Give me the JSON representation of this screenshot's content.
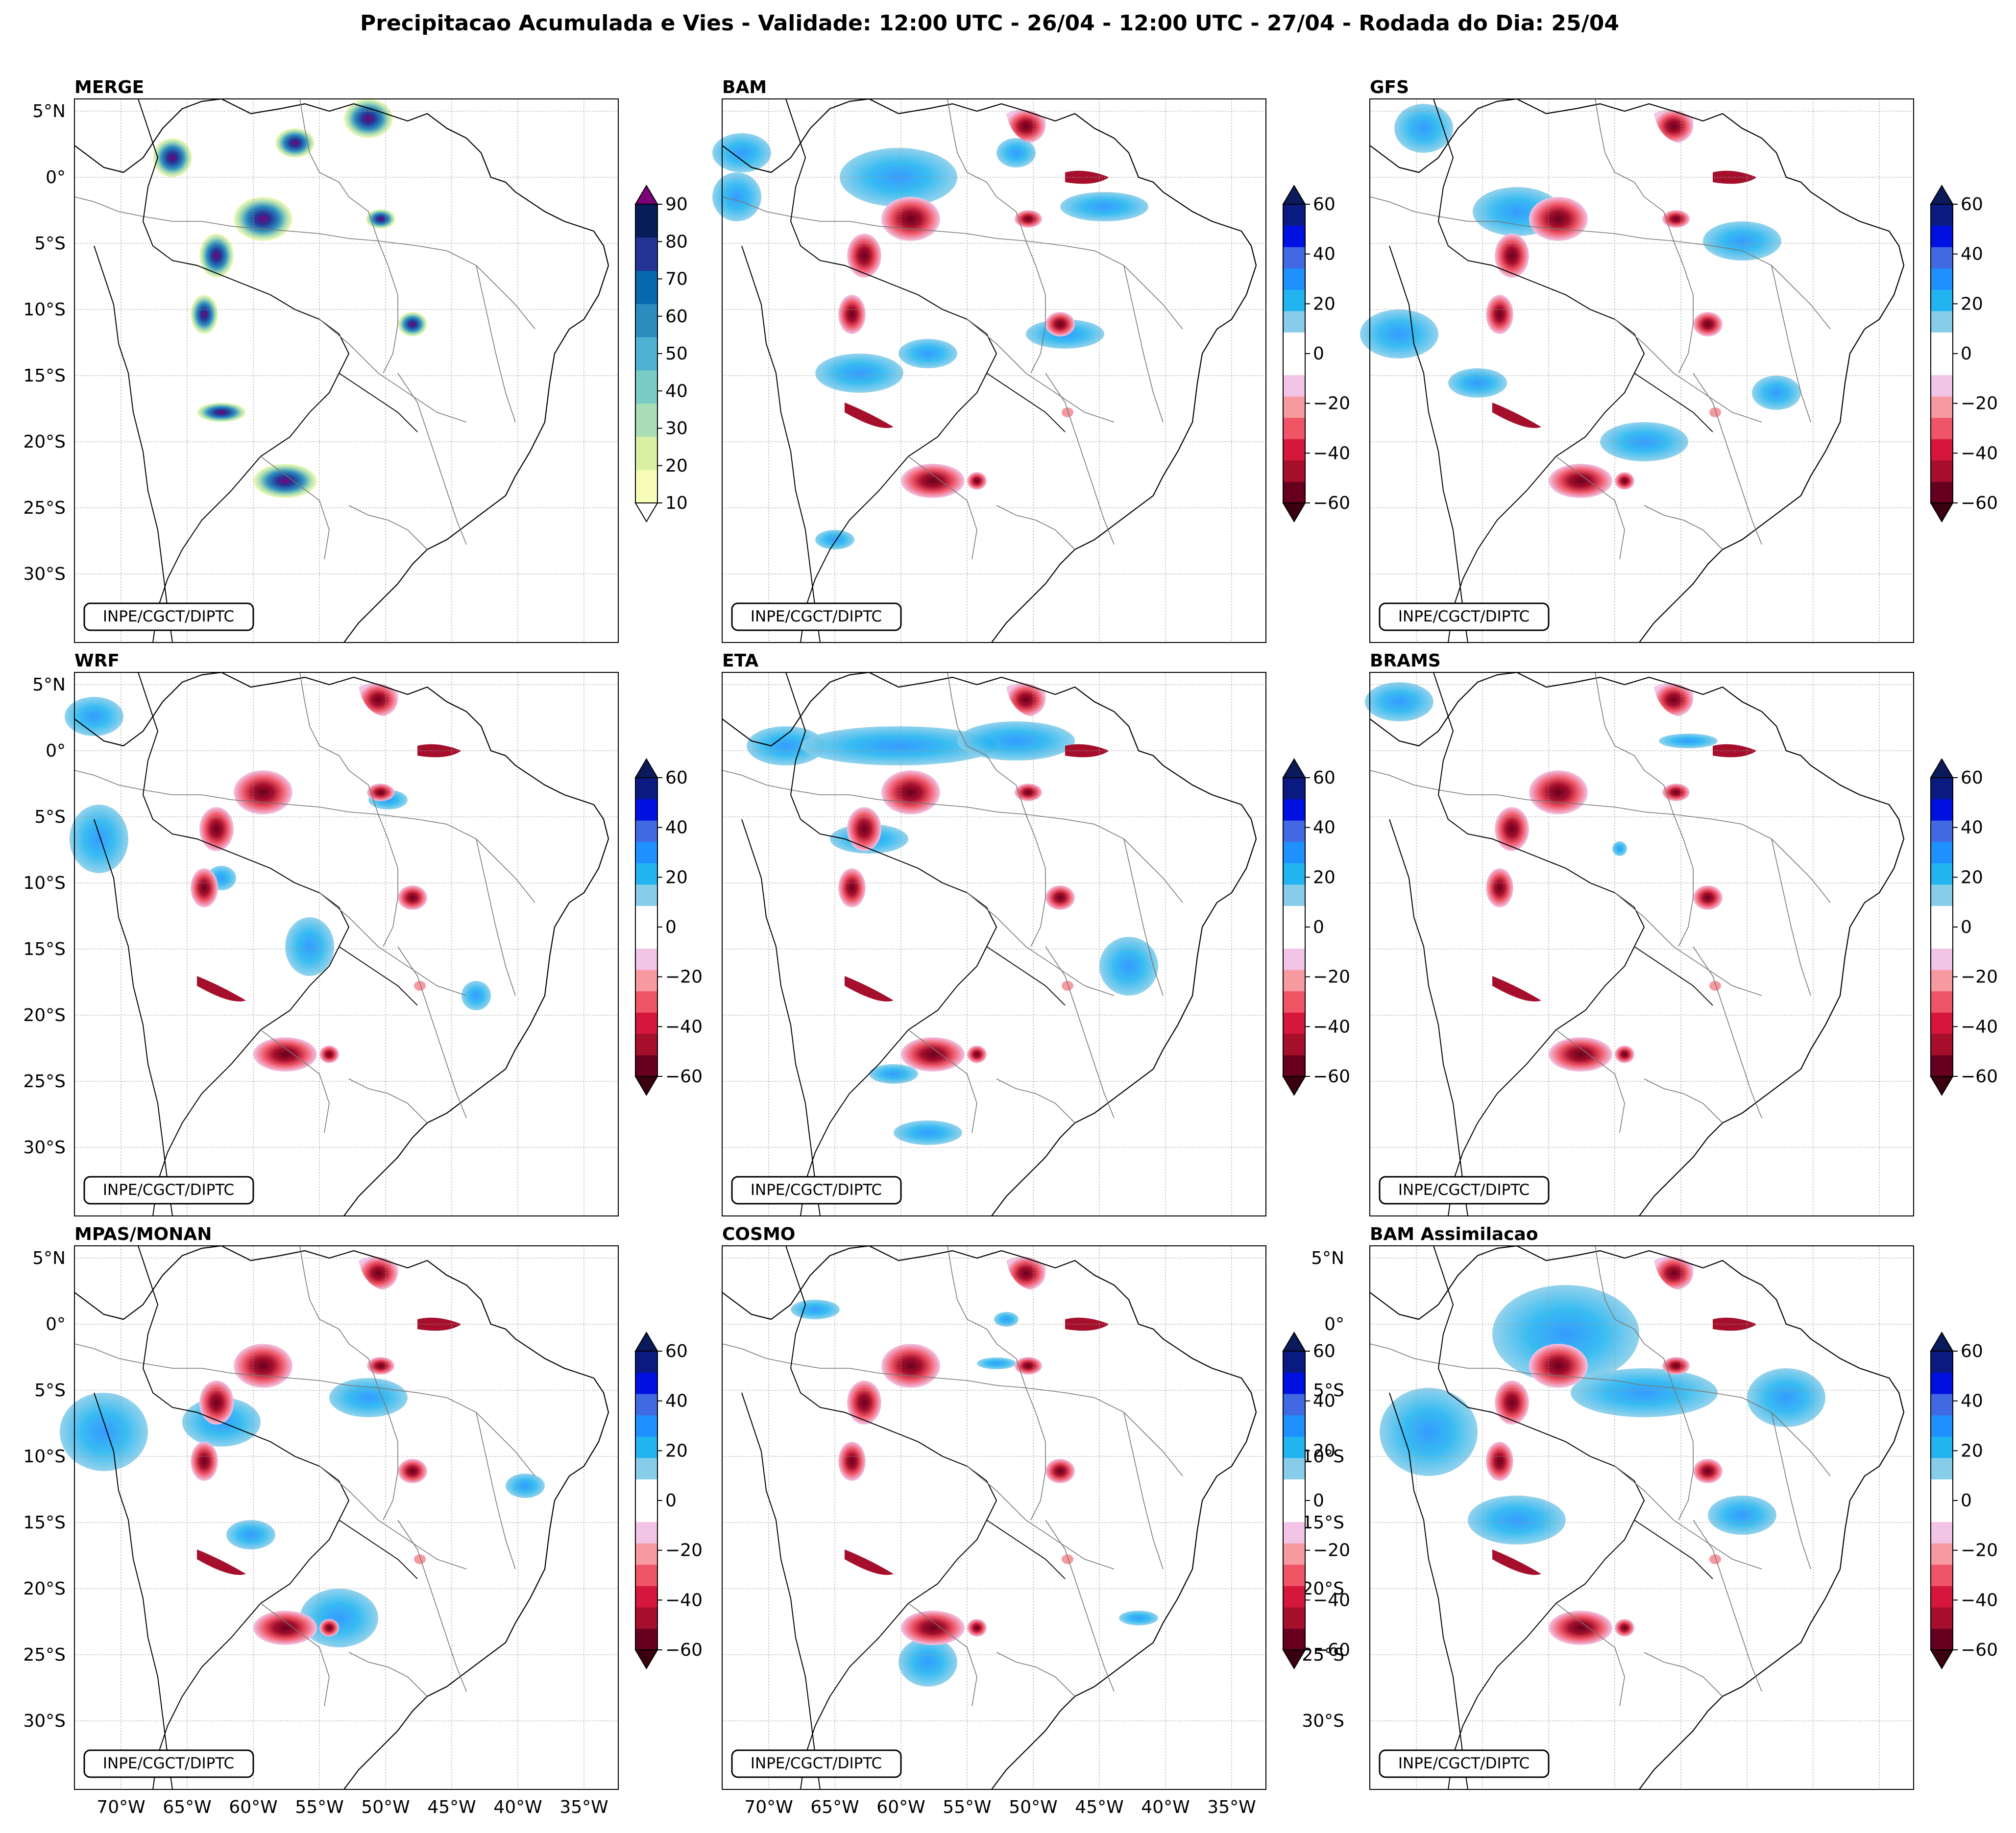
{
  "title": "Precipitacao Acumulada e Vies - Validade: 12:00 UTC - 26/04 - 12:00 UTC - 27/04 - Rodada do Dia: 25/04",
  "credit": "INPE/CGCT/DIPTC",
  "lat_labels": [
    "5°N",
    "0°",
    "5°S",
    "10°S",
    "15°S",
    "20°S",
    "25°S",
    "30°S"
  ],
  "lon_labels": [
    "70°W",
    "65°W",
    "60°W",
    "55°W",
    "50°W",
    "45°W",
    "40°W",
    "35°W"
  ],
  "colorbar_precip": {
    "labels": [
      "90",
      "80",
      "70",
      "60",
      "50",
      "40",
      "30",
      "20",
      "10"
    ],
    "colors": [
      "#f7fcb9",
      "#d9f0a3",
      "#a8ddb5",
      "#7bccc4",
      "#4eb3d3",
      "#2b8cbe",
      "#0868ac",
      "#253494",
      "#081d58"
    ],
    "extend_top": "#7a0177",
    "extend_bottom": "#ffffff"
  },
  "colorbar_bias": {
    "labels": [
      "60",
      "40",
      "20",
      "0",
      "−20",
      "−40",
      "−60"
    ],
    "colors": [
      "#67001f",
      "#a50f2c",
      "#d6173c",
      "#ef5566",
      "#f79aa0",
      "#f2c4e6",
      "#ffffff",
      "#ffffff",
      "#87cdea",
      "#22b4f0",
      "#1e90ff",
      "#4169e1",
      "#0010e0",
      "#0a1a80"
    ],
    "extend_top": "#0a1a5a",
    "extend_bottom": "#3a0010"
  },
  "panels": [
    {
      "name": "MERGE",
      "kind": "precip"
    },
    {
      "name": "BAM",
      "kind": "bias"
    },
    {
      "name": "GFS",
      "kind": "bias"
    },
    {
      "name": "WRF",
      "kind": "bias"
    },
    {
      "name": "ETA",
      "kind": "bias"
    },
    {
      "name": "BRAMS",
      "kind": "bias"
    },
    {
      "name": "MPAS/MONAN",
      "kind": "bias"
    },
    {
      "name": "COSMO",
      "kind": "bias"
    },
    {
      "name": "BAM Assimilacao",
      "kind": "bias"
    }
  ]
}
